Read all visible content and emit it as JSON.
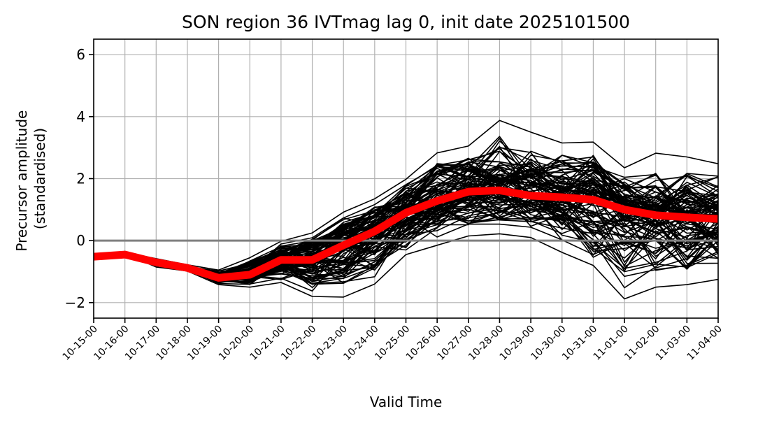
{
  "chart_data": {
    "type": "line",
    "title": "SON region 36 IVTmag lag 0, init date 2025101500",
    "xlabel": "Valid Time",
    "ylabel_line1": "Precursor amplitude",
    "ylabel_line2": "(standardised)",
    "ylim": [
      -2.5,
      6.5
    ],
    "yticks": [
      -2,
      0,
      2,
      4,
      6
    ],
    "ytick_labels": [
      "−2",
      "0",
      "2",
      "4",
      "6"
    ],
    "grid": true,
    "x": [
      "10-15-00",
      "10-16-00",
      "10-17-00",
      "10-18-00",
      "10-19-00",
      "10-20-00",
      "10-21-00",
      "10-22-00",
      "10-23-00",
      "10-24-00",
      "10-25-00",
      "10-26-00",
      "10-27-00",
      "10-28-00",
      "10-29-00",
      "10-30-00",
      "10-31-00",
      "11-01-00",
      "11-02-00",
      "11-03-00",
      "11-04-00"
    ],
    "zero_line": {
      "y": 0,
      "color": "#808080"
    },
    "ensemble": {
      "color": "#000000",
      "member_count": 100,
      "envelope_min": [
        -0.55,
        -0.42,
        -0.85,
        -0.98,
        -1.42,
        -1.5,
        -1.35,
        -1.8,
        -1.82,
        -1.4,
        -0.45,
        -0.15,
        0.15,
        0.22,
        0.1,
        -0.38,
        -0.8,
        -1.88,
        -1.5,
        -1.42,
        -1.25
      ],
      "envelope_max": [
        -0.5,
        -0.38,
        -0.58,
        -0.78,
        -0.95,
        -0.55,
        -0.02,
        0.25,
        0.92,
        1.35,
        1.98,
        2.83,
        3.05,
        3.88,
        3.5,
        3.15,
        3.18,
        2.35,
        2.82,
        2.7,
        2.48
      ]
    },
    "series": [
      {
        "color": "#ff0000",
        "values": [
          -0.52,
          -0.45,
          -0.7,
          -0.88,
          -1.2,
          -1.1,
          -0.62,
          -0.62,
          -0.15,
          0.3,
          0.9,
          1.28,
          1.58,
          1.62,
          1.45,
          1.4,
          1.32,
          1.0,
          0.82,
          0.75,
          0.7
        ]
      }
    ]
  }
}
